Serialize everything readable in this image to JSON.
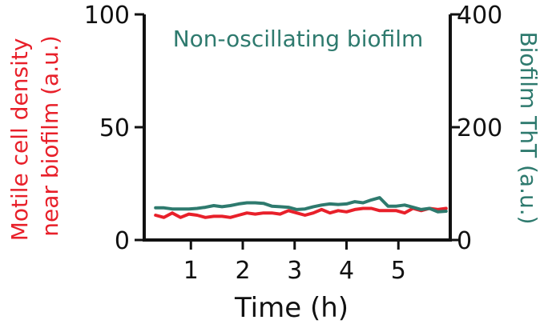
{
  "chart_data": {
    "type": "line",
    "title": "Non-oscillating biofilm",
    "xlabel": "Time (h)",
    "ylabel_left_lines": [
      "Motile cell density",
      "near biofilm (a.u.)"
    ],
    "ylabel_right": "Biofilm ThT (a.u.)",
    "xlim": [
      0.1,
      6
    ],
    "ylim_left": [
      0,
      100
    ],
    "ylim_right": [
      0,
      400
    ],
    "x_ticks": [
      1,
      2,
      3,
      4,
      5
    ],
    "y_ticks_left": [
      0,
      50,
      100
    ],
    "y_ticks_right": [
      0,
      200,
      400
    ],
    "grid": false,
    "series": [
      {
        "name": "Motile cell density near biofilm",
        "axis": "left",
        "color": "#e8202a",
        "x": [
          0.32,
          0.48,
          0.64,
          0.8,
          0.96,
          1.12,
          1.28,
          1.44,
          1.6,
          1.76,
          1.92,
          2.08,
          2.24,
          2.4,
          2.56,
          2.72,
          2.88,
          3.04,
          3.2,
          3.36,
          3.52,
          3.68,
          3.84,
          4.0,
          4.16,
          4.32,
          4.48,
          4.64,
          4.8,
          4.96,
          5.12,
          5.28,
          5.44,
          5.6,
          5.76,
          5.92
        ],
        "y": [
          11,
          10,
          12,
          10,
          11.5,
          11,
          10,
          10.5,
          10.5,
          10,
          11,
          12,
          11.5,
          12,
          12,
          11.5,
          13,
          12,
          11,
          12,
          13.5,
          12,
          13,
          12.5,
          13.5,
          14,
          14,
          13,
          13,
          13,
          12,
          14,
          13,
          14,
          13.5,
          14
        ]
      },
      {
        "name": "Biofilm ThT",
        "axis": "right",
        "color": "#2e7a6e",
        "x": [
          0.32,
          0.48,
          0.64,
          0.8,
          0.96,
          1.12,
          1.28,
          1.44,
          1.6,
          1.76,
          1.92,
          2.08,
          2.24,
          2.4,
          2.56,
          2.72,
          2.88,
          3.04,
          3.2,
          3.36,
          3.52,
          3.68,
          3.84,
          4.0,
          4.16,
          4.32,
          4.48,
          4.64,
          4.8,
          4.96,
          5.12,
          5.28,
          5.44,
          5.6,
          5.76,
          5.92
        ],
        "y": [
          57,
          57,
          55,
          55,
          55,
          56,
          58,
          61,
          59,
          61,
          64,
          66,
          66,
          65,
          60,
          59,
          58,
          54,
          55,
          59,
          62,
          64,
          63,
          64,
          68,
          66,
          71,
          75,
          60,
          60,
          62,
          58,
          54,
          56,
          50,
          51
        ]
      }
    ]
  }
}
